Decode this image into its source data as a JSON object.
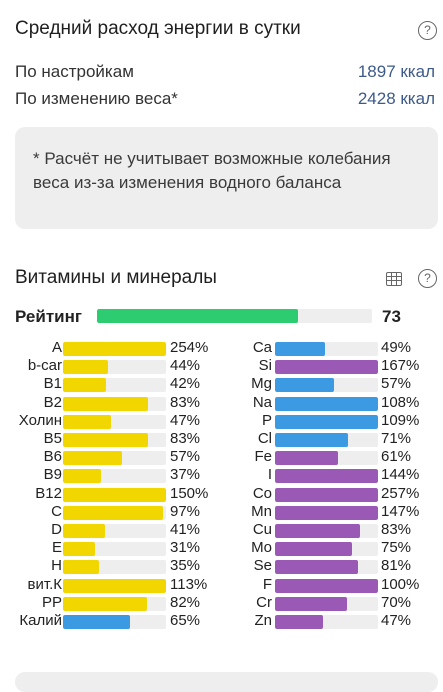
{
  "energy": {
    "title": "Средний расход энергии в сутки",
    "help_icon": "?",
    "rows": [
      {
        "label": "По настройкам",
        "value": "1897 ккал"
      },
      {
        "label": "По изменению веса*",
        "value": "2428 ккал"
      }
    ],
    "note": "* Расчёт не учитывает возможные колебания веса из-за изменения водного баланса"
  },
  "vitamins": {
    "title": "Витамины и минералы",
    "help_icon": "?",
    "rating_label": "Рейтинг",
    "rating_value": "73",
    "rating_fraction": 0.73,
    "colors": {
      "rating": "#2ecc71",
      "vitamin": "#f2d600",
      "mineral_blue": "#3b9ae1",
      "mineral_purple": "#9b59b6",
      "track": "#eeeeee"
    },
    "left": [
      {
        "name": "A",
        "pct": "254%",
        "value": 254,
        "color": "vitamin"
      },
      {
        "name": "b-car",
        "pct": "44%",
        "value": 44,
        "color": "vitamin"
      },
      {
        "name": "B1",
        "pct": "42%",
        "value": 42,
        "color": "vitamin"
      },
      {
        "name": "B2",
        "pct": "83%",
        "value": 83,
        "color": "vitamin"
      },
      {
        "name": "Холин",
        "pct": "47%",
        "value": 47,
        "color": "vitamin"
      },
      {
        "name": "B5",
        "pct": "83%",
        "value": 83,
        "color": "vitamin"
      },
      {
        "name": "B6",
        "pct": "57%",
        "value": 57,
        "color": "vitamin"
      },
      {
        "name": "B9",
        "pct": "37%",
        "value": 37,
        "color": "vitamin"
      },
      {
        "name": "B12",
        "pct": "150%",
        "value": 150,
        "color": "vitamin"
      },
      {
        "name": "C",
        "pct": "97%",
        "value": 97,
        "color": "vitamin"
      },
      {
        "name": "D",
        "pct": "41%",
        "value": 41,
        "color": "vitamin"
      },
      {
        "name": "E",
        "pct": "31%",
        "value": 31,
        "color": "vitamin"
      },
      {
        "name": "H",
        "pct": "35%",
        "value": 35,
        "color": "vitamin"
      },
      {
        "name": "вит.К",
        "pct": "113%",
        "value": 113,
        "color": "vitamin"
      },
      {
        "name": "PP",
        "pct": "82%",
        "value": 82,
        "color": "vitamin"
      },
      {
        "name": "Калий",
        "pct": "65%",
        "value": 65,
        "color": "mineral_blue"
      }
    ],
    "right": [
      {
        "name": "Ca",
        "pct": "49%",
        "value": 49,
        "color": "mineral_blue"
      },
      {
        "name": "Si",
        "pct": "167%",
        "value": 167,
        "color": "mineral_purple"
      },
      {
        "name": "Mg",
        "pct": "57%",
        "value": 57,
        "color": "mineral_blue"
      },
      {
        "name": "Na",
        "pct": "108%",
        "value": 108,
        "color": "mineral_blue"
      },
      {
        "name": "P",
        "pct": "109%",
        "value": 109,
        "color": "mineral_blue"
      },
      {
        "name": "Cl",
        "pct": "71%",
        "value": 71,
        "color": "mineral_blue"
      },
      {
        "name": "Fe",
        "pct": "61%",
        "value": 61,
        "color": "mineral_purple"
      },
      {
        "name": "I",
        "pct": "144%",
        "value": 144,
        "color": "mineral_purple"
      },
      {
        "name": "Co",
        "pct": "257%",
        "value": 257,
        "color": "mineral_purple"
      },
      {
        "name": "Mn",
        "pct": "147%",
        "value": 147,
        "color": "mineral_purple"
      },
      {
        "name": "Cu",
        "pct": "83%",
        "value": 83,
        "color": "mineral_purple"
      },
      {
        "name": "Mo",
        "pct": "75%",
        "value": 75,
        "color": "mineral_purple"
      },
      {
        "name": "Se",
        "pct": "81%",
        "value": 81,
        "color": "mineral_purple"
      },
      {
        "name": "F",
        "pct": "100%",
        "value": 100,
        "color": "mineral_purple"
      },
      {
        "name": "Cr",
        "pct": "70%",
        "value": 70,
        "color": "mineral_purple"
      },
      {
        "name": "Zn",
        "pct": "47%",
        "value": 47,
        "color": "mineral_purple"
      }
    ]
  }
}
